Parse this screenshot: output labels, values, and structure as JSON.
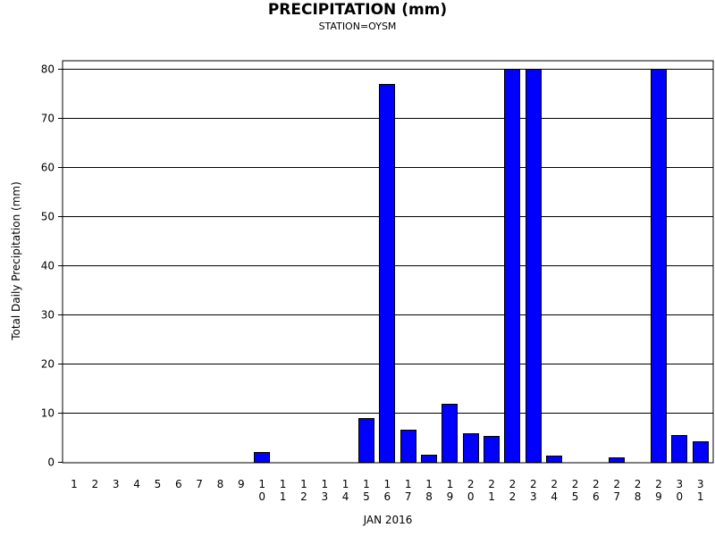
{
  "chart_data": {
    "type": "bar",
    "title": "PRECIPITATION (mm)",
    "subtitle": "STATION=OYSM",
    "xlabel": "JAN 2016",
    "ylabel": "Total Daily Precipitation (mm)",
    "ylim": [
      0,
      80
    ],
    "yticks": [
      0,
      10,
      20,
      30,
      40,
      50,
      60,
      70,
      80
    ],
    "grid": true,
    "categories": [
      "1",
      "2",
      "3",
      "4",
      "5",
      "6",
      "7",
      "8",
      "9",
      "10",
      "11",
      "12",
      "13",
      "14",
      "15",
      "16",
      "17",
      "18",
      "19",
      "20",
      "21",
      "22",
      "23",
      "24",
      "25",
      "26",
      "27",
      "28",
      "29",
      "30",
      "31"
    ],
    "values": [
      0,
      0,
      0,
      0,
      0,
      0,
      0,
      0,
      0,
      2.0,
      0,
      0,
      0,
      0,
      9.0,
      77.0,
      6.5,
      1.5,
      11.8,
      5.8,
      5.3,
      80,
      80,
      1.3,
      0,
      0,
      0.9,
      0,
      80,
      5.5,
      4.2
    ],
    "colors": {
      "bar": "#0000ff",
      "bar_edge": "#000000",
      "grid": "#000000"
    }
  }
}
